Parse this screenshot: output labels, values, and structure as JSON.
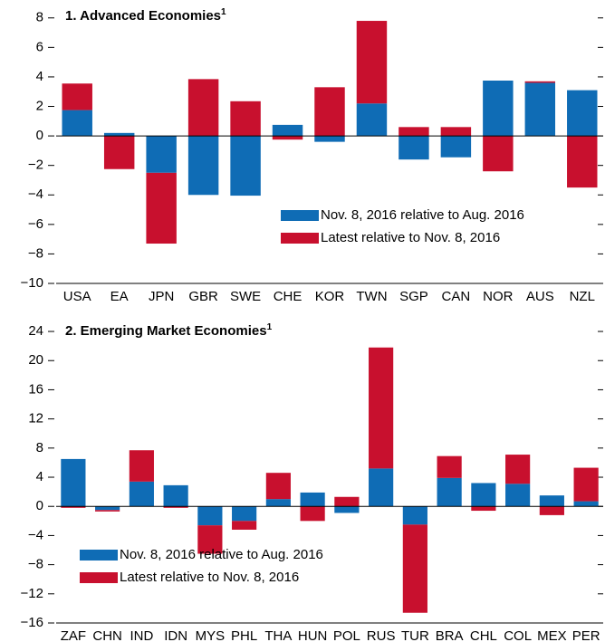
{
  "chart_data": [
    {
      "type": "bar",
      "stacked": true,
      "title": "1. Advanced Economies",
      "title_footnote": "1",
      "categories": [
        "USA",
        "EA",
        "JPN",
        "GBR",
        "SWE",
        "CHE",
        "KOR",
        "TWN",
        "SGP",
        "CAN",
        "NOR",
        "AUS",
        "NZL"
      ],
      "series": [
        {
          "name": "Nov. 8, 2016 relative to Aug. 2016",
          "color": "#0f6cb5",
          "values": [
            1.75,
            0.2,
            -2.5,
            -4.0,
            -4.05,
            0.75,
            -0.4,
            2.2,
            -1.6,
            -1.45,
            3.75,
            3.6,
            3.1
          ]
        },
        {
          "name": "Latest relative to Nov. 8, 2016",
          "color": "#c8102e",
          "values": [
            1.8,
            -2.25,
            -4.8,
            3.85,
            2.35,
            -0.25,
            3.3,
            5.6,
            0.6,
            0.6,
            -2.4,
            0.1,
            -3.5
          ]
        }
      ],
      "ylim": [
        -10,
        8.6
      ],
      "yticks": [
        {
          "value": -10,
          "label": "−10"
        },
        {
          "value": -8,
          "label": "−8"
        },
        {
          "value": -6,
          "label": "−6"
        },
        {
          "value": -4,
          "label": "−4"
        },
        {
          "value": -2,
          "label": "−2"
        },
        0,
        2,
        4,
        6,
        8
      ],
      "legend": "lower right"
    },
    {
      "type": "bar",
      "stacked": true,
      "title": "2. Emerging Market Economies",
      "title_footnote": "1",
      "categories": [
        "ZAF",
        "CHN",
        "IND",
        "IDN",
        "MYS",
        "PHL",
        "THA",
        "HUN",
        "POL",
        "RUS",
        "TUR",
        "BRA",
        "CHL",
        "COL",
        "MEX",
        "PER"
      ],
      "series": [
        {
          "name": "Nov. 8, 2016 relative to Aug. 2016",
          "color": "#0f6cb5",
          "values": [
            6.5,
            -0.5,
            3.4,
            2.9,
            -2.6,
            -2.0,
            1.0,
            1.9,
            -0.9,
            5.2,
            -2.5,
            3.9,
            3.2,
            3.1,
            1.5,
            0.7
          ]
        },
        {
          "name": "Latest relative to Nov. 8, 2016",
          "color": "#c8102e",
          "values": [
            -0.2,
            -0.2,
            4.3,
            -0.2,
            -3.9,
            -1.2,
            3.6,
            -2.0,
            1.3,
            16.6,
            -12.1,
            3.0,
            -0.6,
            4.0,
            -1.2,
            4.6
          ]
        }
      ],
      "ylim": [
        -16,
        25
      ],
      "yticks": [
        {
          "value": -16,
          "label": "−16"
        },
        {
          "value": -12,
          "label": "−12"
        },
        {
          "value": -8,
          "label": "−8"
        },
        {
          "value": -4,
          "label": "−4"
        },
        0,
        4,
        8,
        12,
        16,
        20,
        24
      ],
      "legend": "lower left"
    }
  ]
}
